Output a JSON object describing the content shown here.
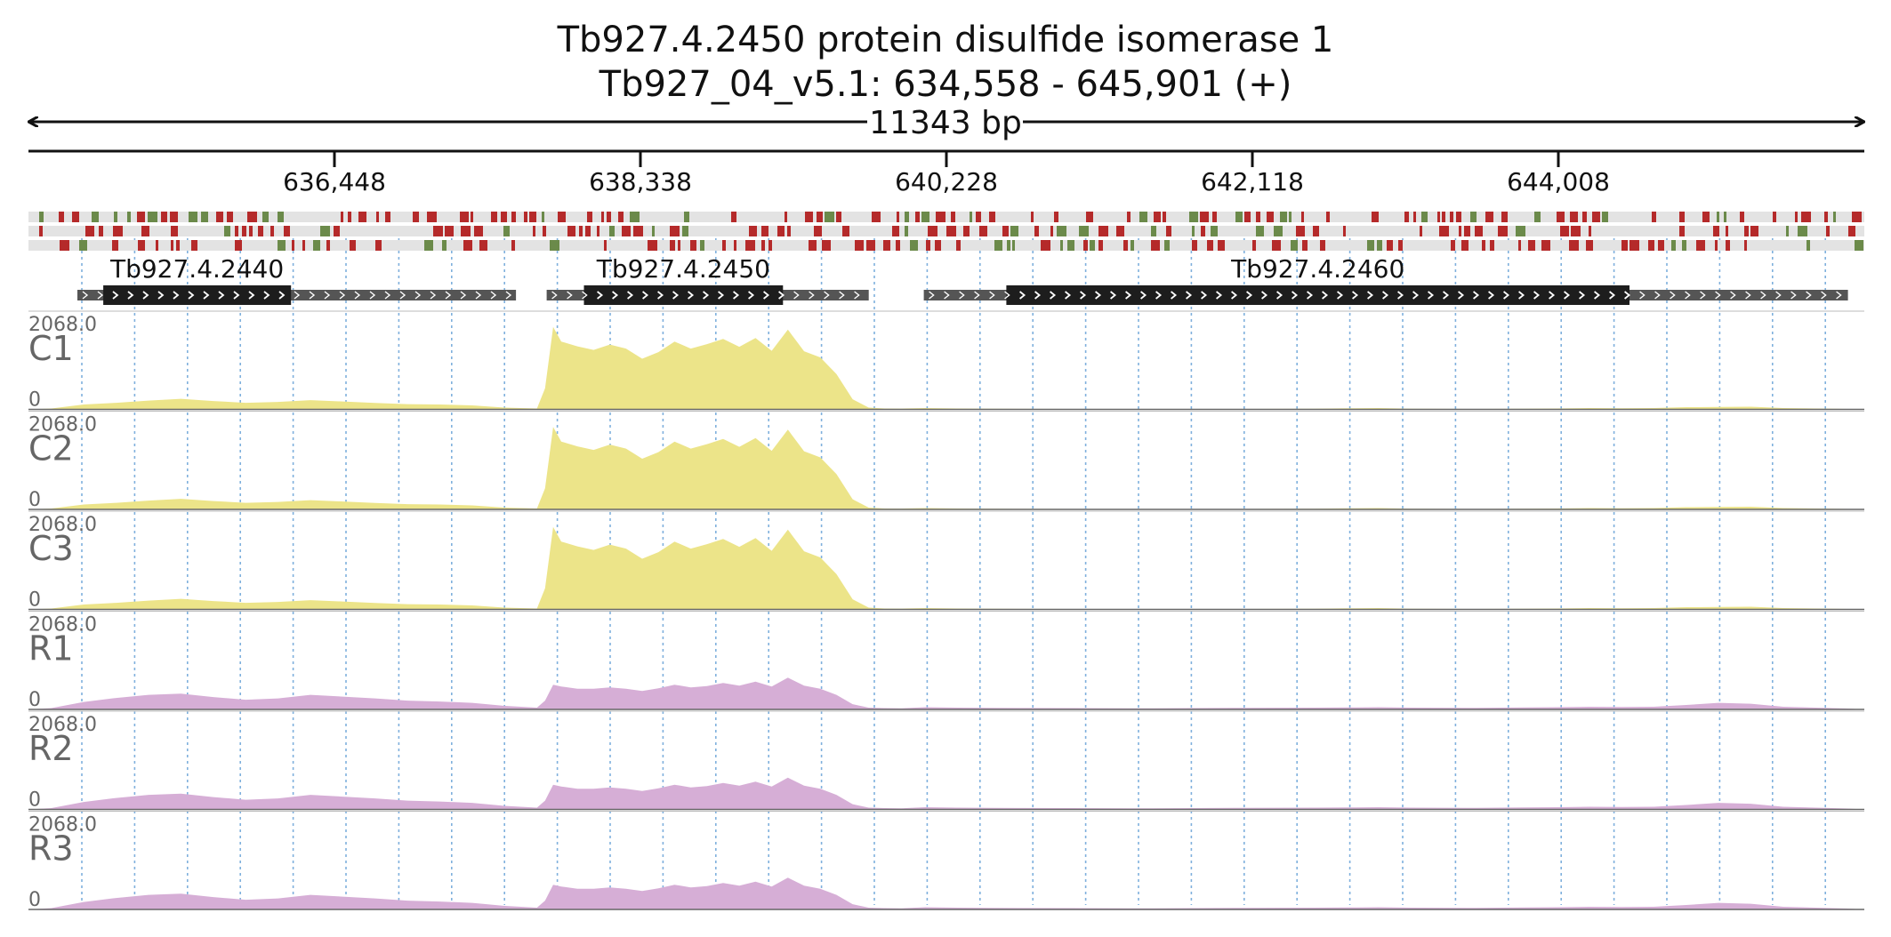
{
  "header": {
    "title_line1": "Tb927.4.2450  protein disulfide isomerase 1",
    "title_line2": "Tb927_04_v5.1: 634,558 - 645,901 (+)",
    "span_label": "11343 bp"
  },
  "region": {
    "start": 634558,
    "end": 645901,
    "length_bp": 11343
  },
  "ruler": {
    "ticks": [
      "636,448",
      "638,338",
      "640,228",
      "642,118",
      "644,008"
    ]
  },
  "genes": [
    {
      "name": "Tb927.4.2440",
      "start": 634860,
      "end": 637570,
      "cds_start": 635020,
      "cds_end": 636180,
      "strand": "+"
    },
    {
      "name": "Tb927.4.2450",
      "start": 637760,
      "end": 639750,
      "cds_start": 637990,
      "cds_end": 639220,
      "strand": "+"
    },
    {
      "name": "Tb927.4.2460",
      "start": 640090,
      "end": 645800,
      "cds_start": 640600,
      "cds_end": 644450,
      "strand": "+"
    }
  ],
  "colors": {
    "condition_C": "#ece489",
    "condition_R": "#d6aed6",
    "gene_cds": "#1d1d1d",
    "gene_utr": "#555555",
    "frame_red": "#b52a2a",
    "frame_green": "#6b8a4a",
    "frame_bg": "#e3e3e3",
    "grid": "#7fb0dd"
  },
  "tracks": [
    {
      "label": "C1",
      "max_label": "2068.0",
      "min_label": "0",
      "group": "C"
    },
    {
      "label": "C2",
      "max_label": "2068.0",
      "min_label": "0",
      "group": "C"
    },
    {
      "label": "C3",
      "max_label": "2068.0",
      "min_label": "0",
      "group": "C"
    },
    {
      "label": "R1",
      "max_label": "2068.0",
      "min_label": "0",
      "group": "R"
    },
    {
      "label": "R2",
      "max_label": "2068.0",
      "min_label": "0",
      "group": "R"
    },
    {
      "label": "R3",
      "max_label": "2068.0",
      "min_label": "0",
      "group": "R"
    }
  ],
  "chart_data": {
    "type": "area",
    "ylim": [
      0,
      2068
    ],
    "x_unit": "genomic position (bp)",
    "x": [
      634558,
      634700,
      634900,
      635100,
      635300,
      635500,
      635700,
      635900,
      636100,
      636300,
      636500,
      636700,
      636900,
      637100,
      637300,
      637500,
      637700,
      637750,
      637800,
      637850,
      637950,
      638050,
      638150,
      638250,
      638350,
      638450,
      638550,
      638650,
      638750,
      638850,
      638950,
      639050,
      639150,
      639250,
      639350,
      639450,
      639550,
      639650,
      639750,
      639850,
      639950,
      640100,
      640300,
      640500,
      641000,
      641500,
      642000,
      642500,
      642700,
      642900,
      643100,
      643500,
      643800,
      644000,
      644200,
      644400,
      644600,
      644800,
      645000,
      645200,
      645400,
      645600,
      645800,
      645901
    ],
    "series": [
      {
        "name": "C1",
        "values": [
          0,
          20,
          110,
          150,
          200,
          240,
          190,
          150,
          170,
          210,
          180,
          145,
          120,
          110,
          90,
          40,
          20,
          480,
          1870,
          1540,
          1430,
          1350,
          1470,
          1380,
          1150,
          1300,
          1540,
          1380,
          1480,
          1600,
          1420,
          1620,
          1330,
          1810,
          1320,
          1180,
          800,
          230,
          40,
          20,
          18,
          30,
          20,
          15,
          10,
          8,
          10,
          15,
          25,
          30,
          15,
          10,
          15,
          20,
          30,
          25,
          30,
          50,
          55,
          60,
          30,
          20,
          10,
          0
        ]
      },
      {
        "name": "C2",
        "values": [
          0,
          20,
          110,
          150,
          200,
          240,
          190,
          150,
          170,
          210,
          180,
          145,
          120,
          110,
          90,
          40,
          20,
          480,
          1870,
          1540,
          1430,
          1350,
          1470,
          1380,
          1150,
          1300,
          1540,
          1380,
          1480,
          1600,
          1420,
          1620,
          1330,
          1810,
          1320,
          1180,
          800,
          230,
          40,
          20,
          18,
          30,
          20,
          15,
          10,
          8,
          10,
          15,
          25,
          30,
          15,
          10,
          15,
          20,
          30,
          25,
          30,
          50,
          55,
          60,
          30,
          20,
          10,
          0
        ]
      },
      {
        "name": "C3",
        "values": [
          0,
          20,
          110,
          150,
          200,
          240,
          190,
          150,
          170,
          210,
          180,
          145,
          120,
          110,
          90,
          40,
          20,
          480,
          1870,
          1540,
          1430,
          1350,
          1470,
          1380,
          1150,
          1300,
          1540,
          1380,
          1480,
          1600,
          1420,
          1620,
          1330,
          1810,
          1320,
          1180,
          800,
          230,
          40,
          20,
          18,
          30,
          20,
          15,
          10,
          8,
          10,
          15,
          25,
          30,
          15,
          10,
          15,
          20,
          30,
          25,
          30,
          50,
          55,
          60,
          30,
          20,
          10,
          0
        ]
      },
      {
        "name": "R1",
        "values": [
          0,
          30,
          170,
          260,
          330,
          360,
          280,
          220,
          250,
          330,
          290,
          250,
          200,
          180,
          150,
          80,
          40,
          200,
          560,
          520,
          470,
          470,
          500,
          470,
          420,
          480,
          560,
          500,
          530,
          600,
          540,
          630,
          520,
          720,
          540,
          470,
          330,
          120,
          40,
          30,
          25,
          50,
          40,
          35,
          30,
          25,
          35,
          40,
          45,
          50,
          40,
          35,
          45,
          50,
          60,
          55,
          60,
          100,
          150,
          130,
          60,
          40,
          20,
          0
        ]
      },
      {
        "name": "R2",
        "values": [
          0,
          30,
          170,
          260,
          330,
          360,
          280,
          220,
          250,
          330,
          290,
          250,
          200,
          180,
          150,
          80,
          40,
          200,
          560,
          520,
          470,
          470,
          500,
          470,
          420,
          480,
          560,
          500,
          530,
          600,
          540,
          630,
          520,
          720,
          540,
          470,
          330,
          120,
          40,
          30,
          25,
          50,
          40,
          35,
          30,
          25,
          35,
          40,
          45,
          50,
          40,
          35,
          45,
          50,
          60,
          55,
          60,
          100,
          150,
          130,
          60,
          40,
          20,
          0
        ]
      },
      {
        "name": "R3",
        "values": [
          0,
          30,
          170,
          260,
          330,
          360,
          280,
          220,
          250,
          330,
          290,
          250,
          200,
          180,
          150,
          80,
          40,
          200,
          560,
          520,
          470,
          470,
          500,
          470,
          420,
          480,
          560,
          500,
          530,
          600,
          540,
          630,
          520,
          720,
          540,
          470,
          330,
          120,
          40,
          30,
          25,
          50,
          40,
          35,
          30,
          25,
          35,
          40,
          45,
          50,
          40,
          35,
          45,
          50,
          60,
          55,
          60,
          100,
          150,
          130,
          60,
          40,
          20,
          0
        ]
      }
    ]
  }
}
